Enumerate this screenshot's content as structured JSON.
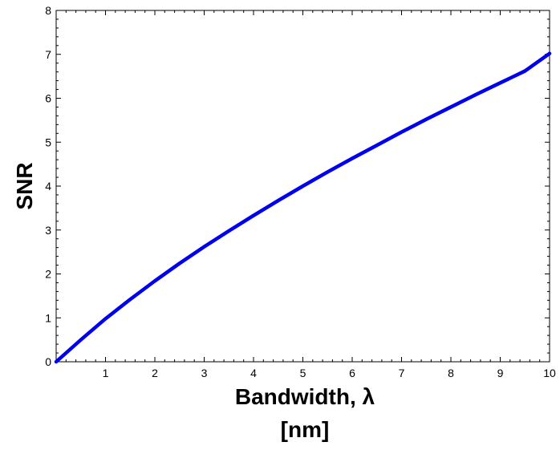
{
  "chart_data": {
    "type": "line",
    "title": "",
    "xlabel": "Bandwidth, λ",
    "xlabel_unit": "[nm]",
    "ylabel": "SNR",
    "xlim": [
      0,
      10
    ],
    "ylim": [
      0,
      8
    ],
    "xticks": [
      "1",
      "2",
      "3",
      "4",
      "5",
      "6",
      "7",
      "8",
      "9",
      "10"
    ],
    "yticks": [
      "0",
      "1",
      "2",
      "3",
      "4",
      "5",
      "6",
      "7",
      "8"
    ],
    "grid": false,
    "legend": "none",
    "series": [
      {
        "color": "#0000ee",
        "x": [
          0,
          0.5,
          1,
          1.5,
          2,
          2.5,
          3,
          3.5,
          4,
          4.5,
          5,
          5.5,
          6,
          6.5,
          7,
          7.5,
          8,
          8.5,
          9,
          9.5,
          10
        ],
        "y": [
          0,
          0.5,
          0.98,
          1.42,
          1.84,
          2.24,
          2.62,
          2.98,
          3.33,
          3.67,
          4.0,
          4.32,
          4.63,
          4.93,
          5.23,
          5.52,
          5.8,
          6.08,
          6.35,
          6.62,
          7.02
        ]
      }
    ]
  }
}
